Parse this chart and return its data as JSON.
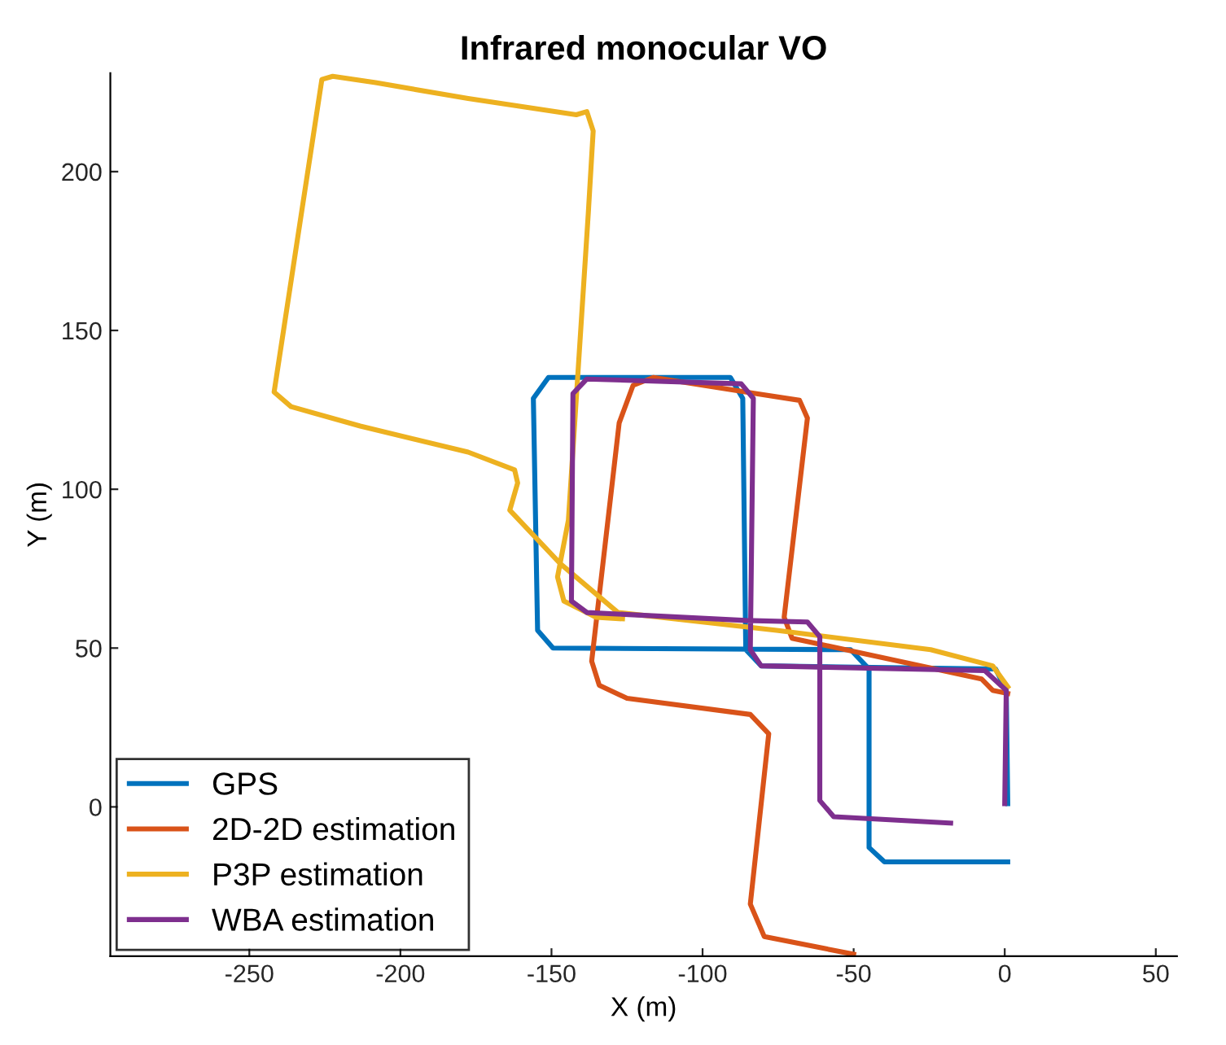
{
  "chart_data": {
    "type": "line",
    "title": "Infrared monocular VO",
    "xlabel": "X (m)",
    "ylabel": "Y (m)",
    "xlim": [
      -296,
      57
    ],
    "ylim": [
      -47,
      231
    ],
    "xticks": [
      -250,
      -200,
      -150,
      -100,
      -50,
      0,
      50
    ],
    "yticks": [
      0,
      50,
      100,
      150,
      200
    ],
    "grid": false,
    "legend": "bottom left",
    "marker": "none",
    "line_style": "solid",
    "series": [
      {
        "name": "GPS",
        "color": "#0072bd",
        "x": [
          1,
          0.5,
          -3,
          -80.6,
          -85.7,
          -86.7,
          -90.8,
          -151,
          -156,
          -154.6,
          -149.5,
          -51,
          -44.9,
          -44.9,
          -39.8,
          1
        ],
        "values": [
          1,
          36.7,
          43.4,
          44.4,
          49.5,
          128.6,
          135.2,
          135.2,
          128.6,
          55.6,
          50,
          49.5,
          43.4,
          -12.8,
          -17.3,
          -17.3
        ]
      },
      {
        "name": "2D-2D estimation",
        "color": "#d95319",
        "x": [
          1,
          -4,
          -7.7,
          -70.4,
          -73,
          -65.3,
          -67.9,
          -82.1,
          -116.3,
          -123,
          -127.6,
          -136.7,
          -134.2,
          -125,
          -84.2,
          -78.1,
          -84.2,
          -79.6,
          -50
        ],
        "values": [
          35.7,
          36.7,
          40.3,
          53.1,
          59.7,
          122.4,
          128,
          130.1,
          135.2,
          132.7,
          120.9,
          45.9,
          38.3,
          34.2,
          29.1,
          23,
          -30.6,
          -40.8,
          -46.4
        ]
      },
      {
        "name": "P3P estimation",
        "color": "#edb120",
        "x": [
          1,
          -4,
          -24.5,
          -75.5,
          -128,
          -147,
          -163.8,
          -161.2,
          -162.2,
          -177.6,
          -213.3,
          -236.2,
          -241.8,
          -226,
          -222.4,
          -208.2,
          -177.6,
          -141.8,
          -138.3,
          -136.2,
          -137.8,
          -144.4,
          -148,
          -145.9,
          -135.2,
          -126.5
        ],
        "values": [
          37.8,
          44.4,
          49.5,
          55.6,
          61.2,
          76.5,
          93.4,
          102,
          106.1,
          111.7,
          119.9,
          126,
          130.6,
          229,
          230,
          228,
          223,
          217.9,
          218.9,
          212.8,
          187.2,
          90.3,
          72.4,
          64.8,
          59.7,
          59.2
        ]
      },
      {
        "name": "WBA estimation",
        "color": "#7e2f8e",
        "x": [
          0,
          0.5,
          -6.6,
          -80.6,
          -84.2,
          -83.2,
          -87.2,
          -138.3,
          -142.9,
          -143.4,
          -138.3,
          -85.7,
          -65.3,
          -61.2,
          -61.2,
          -56.6,
          -17.9
        ],
        "values": [
          1,
          36.7,
          42.9,
          44.4,
          49.5,
          128.6,
          133.2,
          134.7,
          130.1,
          64.8,
          61.2,
          58.7,
          58.2,
          53.6,
          2,
          -3.1,
          -5.1
        ]
      }
    ]
  }
}
